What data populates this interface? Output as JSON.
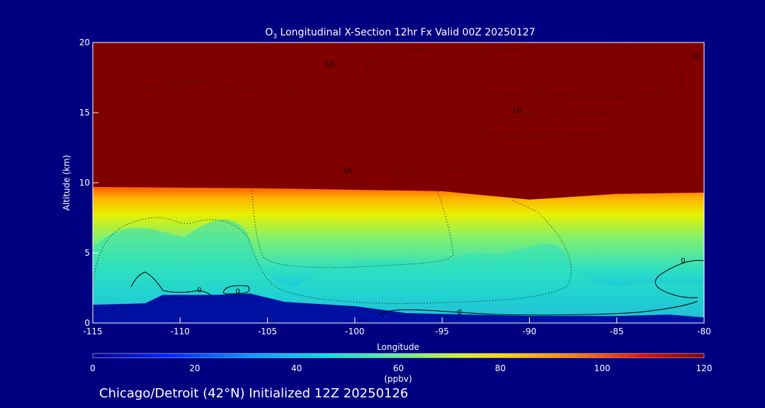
{
  "chart_data": {
    "type": "heatmap",
    "title_prefix": "O",
    "title_sub": "3",
    "title_rest": " Longitudinal X-Section 12hr  Fx Valid 00Z 20250127",
    "xlabel": "Longitude",
    "ylabel": "Altitude (km)",
    "xlim": [
      -115,
      -80
    ],
    "ylim": [
      0,
      20
    ],
    "x_ticks": [
      "-115",
      "-110",
      "-105",
      "-100",
      "-95",
      "-90",
      "-85",
      "-80"
    ],
    "y_ticks": [
      "0",
      "5",
      "10",
      "15",
      "20"
    ],
    "colorbar": {
      "range": [
        0,
        120
      ],
      "ticks": [
        "0",
        "20",
        "40",
        "60",
        "80",
        "100",
        "120"
      ],
      "unit": "(ppbv)"
    },
    "colors": {
      "background": "#000080",
      "stratosphere": "#800000",
      "surface": "#0010a0"
    },
    "tropopause_km": [
      {
        "lon": -115,
        "alt": 9.7
      },
      {
        "lon": -105,
        "alt": 9.6
      },
      {
        "lon": -95,
        "alt": 9.4
      },
      {
        "lon": -90,
        "alt": 8.8
      },
      {
        "lon": -85,
        "alt": 9.2
      },
      {
        "lon": -80,
        "alt": 9.3
      }
    ],
    "contour_labels": [
      {
        "text": "-10",
        "lon": -101.5,
        "alt": 18.3
      },
      {
        "text": "-10",
        "lon": -90.8,
        "alt": 15.0
      },
      {
        "text": "-10",
        "lon": -80.5,
        "alt": 18.9
      },
      {
        "text": "-10",
        "lon": -100.5,
        "alt": 10.7
      },
      {
        "text": "0",
        "lon": -108.9,
        "alt": 2.2
      },
      {
        "text": "0",
        "lon": -106.7,
        "alt": 2.1
      },
      {
        "text": "0",
        "lon": -94.0,
        "alt": 0.6
      },
      {
        "text": "0",
        "lon": -81.2,
        "alt": 4.3
      }
    ],
    "footer": "Chicago/Detroit (42°N) Initialized 12Z 20250126"
  }
}
